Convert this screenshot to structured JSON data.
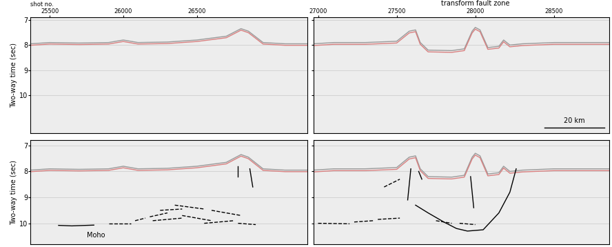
{
  "chart_data": [
    {
      "type": "seismic_section",
      "x_label": "shot no.",
      "y_label": "Two-way time (sec)",
      "xlim": [
        25370,
        27250
      ],
      "ylim": [
        11.5,
        6.9
      ],
      "xticks": [
        25500,
        26000,
        26500
      ],
      "yticks": [
        7,
        8,
        9,
        10
      ],
      "tick_labels": true,
      "series": [
        {
          "color": "#9a9a9a",
          "x": [
            25370,
            25500,
            25700,
            25900,
            26000,
            26100,
            26300,
            26500,
            26700,
            26800,
            26850,
            26950,
            27100,
            27250
          ],
          "values": [
            7.95,
            7.9,
            7.92,
            7.9,
            7.8,
            7.9,
            7.88,
            7.8,
            7.65,
            7.35,
            7.45,
            7.9,
            7.95,
            7.95
          ]
        },
        {
          "color": "#d98080",
          "x": [
            25370,
            25500,
            25700,
            25900,
            26000,
            26100,
            26300,
            26500,
            26700,
            26800,
            26850,
            26950,
            27100,
            27250
          ],
          "values": [
            8.01,
            7.96,
            7.98,
            7.96,
            7.86,
            7.96,
            7.94,
            7.86,
            7.71,
            7.41,
            7.51,
            7.96,
            8.01,
            8.01
          ]
        }
      ]
    },
    {
      "type": "seismic_section",
      "xlim": [
        26970,
        28850
      ],
      "ylim": [
        11.5,
        6.9
      ],
      "xticks": [
        27000,
        27500,
        28000,
        28500
      ],
      "yticks": [
        7,
        8,
        9,
        10
      ],
      "tick_labels": "x",
      "annotations": [
        {
          "text": "transform fault zone",
          "x": 28000
        }
      ],
      "scale_bar": {
        "label": "20 km",
        "length": 380
      },
      "series": [
        {
          "color": "#9a9a9a",
          "x": [
            26970,
            27100,
            27300,
            27500,
            27580,
            27620,
            27650,
            27700,
            27850,
            27930,
            27980,
            28000,
            28030,
            28080,
            28150,
            28180,
            28220,
            28300,
            28500,
            28850
          ],
          "values": [
            7.95,
            7.9,
            7.9,
            7.85,
            7.45,
            7.4,
            7.9,
            8.2,
            8.22,
            8.15,
            7.45,
            7.3,
            7.4,
            8.1,
            8.05,
            7.8,
            8.0,
            7.95,
            7.9,
            7.9
          ]
        },
        {
          "color": "#d98080",
          "x": [
            26970,
            27100,
            27300,
            27500,
            27580,
            27620,
            27650,
            27700,
            27850,
            27930,
            27980,
            28000,
            28030,
            28080,
            28150,
            28180,
            28220,
            28300,
            28500,
            28850
          ],
          "values": [
            8.02,
            7.97,
            7.97,
            7.92,
            7.52,
            7.47,
            7.97,
            8.27,
            8.29,
            8.22,
            7.52,
            7.37,
            7.47,
            8.17,
            8.12,
            7.87,
            8.07,
            8.02,
            7.97,
            7.97
          ]
        }
      ]
    },
    {
      "type": "seismic_section",
      "y_label": "Two-way time (sec)",
      "xlim": [
        25370,
        27250
      ],
      "ylim": [
        10.8,
        6.8
      ],
      "yticks": [
        7,
        8,
        9,
        10
      ],
      "tick_labels": "y",
      "annotations": [
        {
          "text": "Moho",
          "x": 25750,
          "y": 10.45
        }
      ],
      "series": [
        {
          "color": "#9a9a9a",
          "x": [
            25370,
            25500,
            25700,
            25900,
            26000,
            26100,
            26300,
            26500,
            26700,
            26800,
            26850,
            26950,
            27100,
            27250
          ],
          "values": [
            7.95,
            7.9,
            7.92,
            7.9,
            7.8,
            7.9,
            7.88,
            7.8,
            7.65,
            7.35,
            7.45,
            7.9,
            7.95,
            7.95
          ]
        },
        {
          "color": "#d98080",
          "x": [
            25370,
            25500,
            25700,
            25900,
            26000,
            26100,
            26300,
            26500,
            26700,
            26800,
            26850,
            26950,
            27100,
            27250
          ],
          "values": [
            8.01,
            7.96,
            7.98,
            7.96,
            7.86,
            7.96,
            7.94,
            7.86,
            7.71,
            7.41,
            7.51,
            7.96,
            8.01,
            8.01
          ]
        }
      ],
      "segments": [
        {
          "line_style": "solid",
          "x": [
            25560,
            25650,
            25800
          ],
          "values": [
            10.08,
            10.1,
            10.07
          ]
        },
        {
          "line_style": "dashed",
          "x": [
            25900,
            26050
          ],
          "values": [
            10.0,
            10.0
          ]
        },
        {
          "line_style": "dashed",
          "x": [
            26080,
            26150
          ],
          "values": [
            9.9,
            9.8
          ]
        },
        {
          "line_style": "dashed",
          "x": [
            26180,
            26300
          ],
          "values": [
            9.75,
            9.6
          ]
        },
        {
          "line_style": "dashed",
          "x": [
            26250,
            26400
          ],
          "values": [
            9.5,
            9.45
          ]
        },
        {
          "line_style": "dashed",
          "x": [
            26350,
            26550
          ],
          "values": [
            9.3,
            9.45
          ]
        },
        {
          "line_style": "dashed",
          "x": [
            26200,
            26400
          ],
          "values": [
            9.9,
            9.8
          ]
        },
        {
          "line_style": "dashed",
          "x": [
            26400,
            26600
          ],
          "values": [
            9.7,
            9.9
          ]
        },
        {
          "line_style": "dashed",
          "x": [
            26550,
            26750
          ],
          "values": [
            10.0,
            9.9
          ]
        },
        {
          "line_style": "dashed",
          "x": [
            26600,
            26800
          ],
          "values": [
            9.5,
            9.7
          ]
        },
        {
          "line_style": "dashed",
          "x": [
            26780,
            26900
          ],
          "values": [
            10.0,
            10.05
          ]
        },
        {
          "line_style": "solid",
          "x": [
            26780,
            26780
          ],
          "values": [
            7.8,
            8.2
          ]
        },
        {
          "line_style": "solid",
          "x": [
            26860,
            26880
          ],
          "values": [
            7.9,
            8.6
          ]
        }
      ]
    },
    {
      "type": "seismic_section",
      "xlim": [
        26970,
        28850
      ],
      "ylim": [
        10.8,
        6.8
      ],
      "yticks": [
        7,
        8,
        9,
        10
      ],
      "tick_labels": false,
      "series": [
        {
          "color": "#9a9a9a",
          "x": [
            26970,
            27100,
            27300,
            27500,
            27580,
            27620,
            27650,
            27700,
            27850,
            27930,
            27980,
            28000,
            28030,
            28080,
            28150,
            28180,
            28220,
            28300,
            28500,
            28850
          ],
          "values": [
            7.95,
            7.9,
            7.9,
            7.85,
            7.45,
            7.4,
            7.9,
            8.2,
            8.22,
            8.15,
            7.45,
            7.3,
            7.4,
            8.1,
            8.05,
            7.8,
            8.0,
            7.95,
            7.9,
            7.9
          ]
        },
        {
          "color": "#d98080",
          "x": [
            26970,
            27100,
            27300,
            27500,
            27580,
            27620,
            27650,
            27700,
            27850,
            27930,
            27980,
            28000,
            28030,
            28080,
            28150,
            28180,
            28220,
            28300,
            28500,
            28850
          ],
          "values": [
            8.02,
            7.97,
            7.97,
            7.92,
            7.52,
            7.47,
            7.97,
            8.27,
            8.29,
            8.22,
            7.52,
            7.37,
            7.47,
            8.17,
            8.12,
            7.87,
            8.07,
            8.02,
            7.97,
            7.97
          ]
        }
      ],
      "segments": [
        {
          "line_style": "dashed",
          "x": [
            27000,
            27200
          ],
          "values": [
            10.0,
            10.02
          ]
        },
        {
          "line_style": "dashed",
          "x": [
            27230,
            27350
          ],
          "values": [
            9.95,
            9.9
          ]
        },
        {
          "line_style": "dashed",
          "x": [
            27380,
            27520
          ],
          "values": [
            9.85,
            9.8
          ]
        },
        {
          "line_style": "dashed",
          "x": [
            27420,
            27520
          ],
          "values": [
            8.6,
            8.3
          ]
        },
        {
          "line_style": "solid",
          "x": [
            27590,
            27570
          ],
          "values": [
            7.9,
            9.1
          ]
        },
        {
          "line_style": "solid",
          "x": [
            27640,
            27660
          ],
          "values": [
            8.0,
            8.3
          ]
        },
        {
          "line_style": "solid",
          "x": [
            27970,
            27990
          ],
          "values": [
            8.2,
            9.4
          ]
        },
        {
          "line_style": "solid",
          "x": [
            27620,
            27700,
            27800,
            27880,
            27950,
            28050,
            28150,
            28220,
            28260
          ],
          "values": [
            9.3,
            9.6,
            9.95,
            10.2,
            10.3,
            10.25,
            9.6,
            8.8,
            7.9
          ]
        },
        {
          "line_style": "dashed",
          "x": [
            27750,
            27850
          ],
          "values": [
            9.9,
            10.0
          ]
        },
        {
          "line_style": "dashed",
          "x": [
            27900,
            28000
          ],
          "values": [
            10.0,
            10.05
          ]
        }
      ]
    }
  ]
}
